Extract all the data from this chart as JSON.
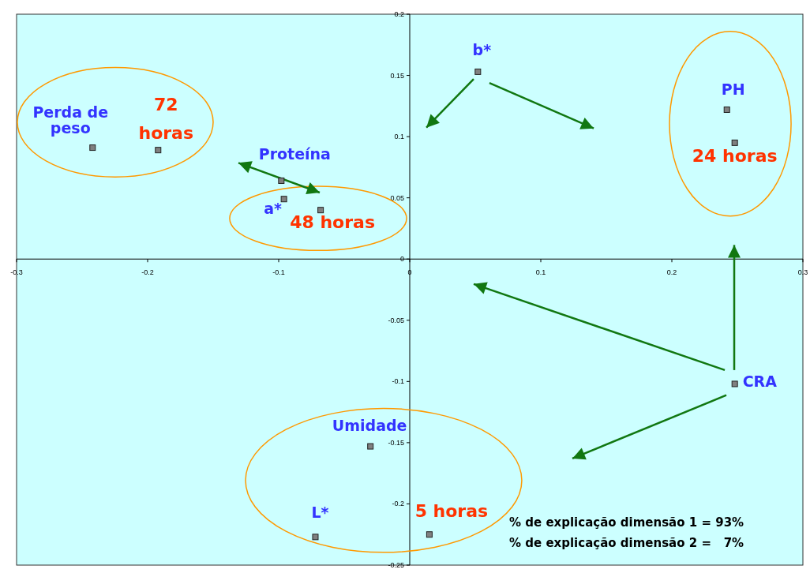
{
  "chart_data": {
    "type": "scatter",
    "xlim": [
      -0.3,
      0.3
    ],
    "ylim": [
      -0.25,
      0.2
    ],
    "xticks": [
      -0.3,
      -0.2,
      -0.1,
      0,
      0.1,
      0.2,
      0.3
    ],
    "yticks": [
      -0.25,
      -0.2,
      -0.15,
      -0.1,
      -0.05,
      0,
      0.05,
      0.1,
      0.15,
      0.2
    ],
    "grid": false,
    "marker": "square",
    "series": [
      {
        "color": "#808080",
        "x": [
          -0.242,
          -0.098,
          -0.096,
          0.052,
          0.242,
          0.248,
          -0.03,
          -0.072
        ],
        "values": [
          0.091,
          0.064,
          0.049,
          0.153,
          0.122,
          -0.102,
          -0.153,
          -0.227
        ]
      },
      {
        "color": "#808080",
        "x": [
          -0.192,
          -0.068,
          0.248,
          0.015
        ],
        "values": [
          0.089,
          0.04,
          0.095,
          -0.225
        ]
      }
    ],
    "annotations": [
      {
        "text": "Perda de\npeso",
        "x": -0.242,
        "y": 0.091
      },
      {
        "text": "Proteína",
        "x": -0.098,
        "y": 0.064
      },
      {
        "text": "a*",
        "x": -0.096,
        "y": 0.049
      },
      {
        "text": "b*",
        "x": 0.052,
        "y": 0.153
      },
      {
        "text": "PH",
        "x": 0.242,
        "y": 0.122
      },
      {
        "text": "CRA",
        "x": 0.248,
        "y": -0.102
      },
      {
        "text": "Umidade",
        "x": -0.03,
        "y": -0.153
      },
      {
        "text": "L*",
        "x": -0.072,
        "y": -0.227
      },
      {
        "text": "72\nhoras",
        "x": -0.192,
        "y": 0.089
      },
      {
        "text": "48 horas",
        "x": -0.068,
        "y": 0.04
      },
      {
        "text": "24 horas",
        "x": 0.248,
        "y": 0.095
      },
      {
        "text": "5 horas",
        "x": 0.015,
        "y": -0.225
      },
      "% de explicação dimensão 1 = 93%",
      "% de explicação dimensão 2 =   7%"
    ]
  }
}
